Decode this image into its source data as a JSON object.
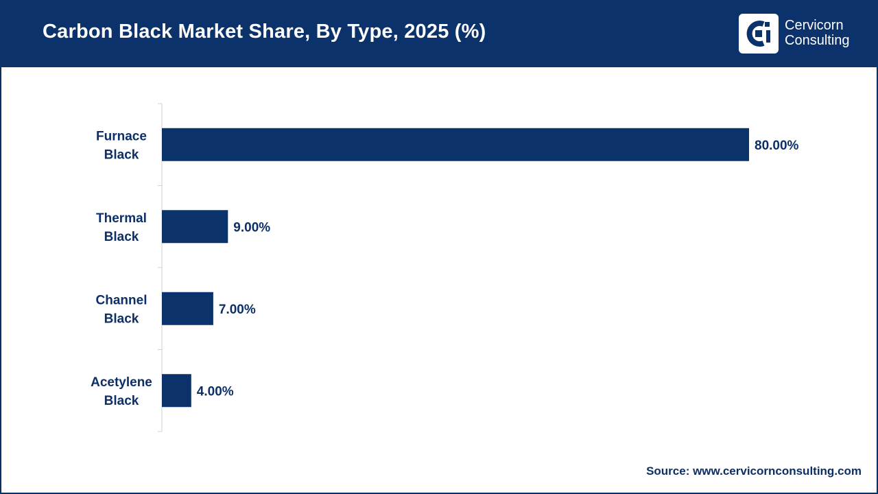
{
  "header": {
    "title": "Carbon Black Market Share, By Type, 2025 (%)",
    "logo_line1": "Cervicorn",
    "logo_line2": "Consulting"
  },
  "source": "Source: www.cervicornconsulting.com",
  "colors": {
    "header_bg": "#0b326b",
    "bar": "#0b326b",
    "text": "#0b2f66"
  },
  "chart_data": {
    "type": "bar",
    "orientation": "horizontal",
    "categories": [
      "Furnace Black",
      "Thermal Black",
      "Channel Black",
      "Acetylene Black"
    ],
    "category_lines": [
      [
        "Furnace",
        "Black"
      ],
      [
        "Thermal",
        "Black"
      ],
      [
        "Channel",
        "Black"
      ],
      [
        "Acetylene",
        "Black"
      ]
    ],
    "values": [
      80.0,
      9.0,
      7.0,
      4.0
    ],
    "value_labels": [
      "80.00%",
      "9.00%",
      "7.00%",
      "4.00%"
    ],
    "xlim": [
      0,
      80
    ],
    "grid": false,
    "legend": "none"
  }
}
